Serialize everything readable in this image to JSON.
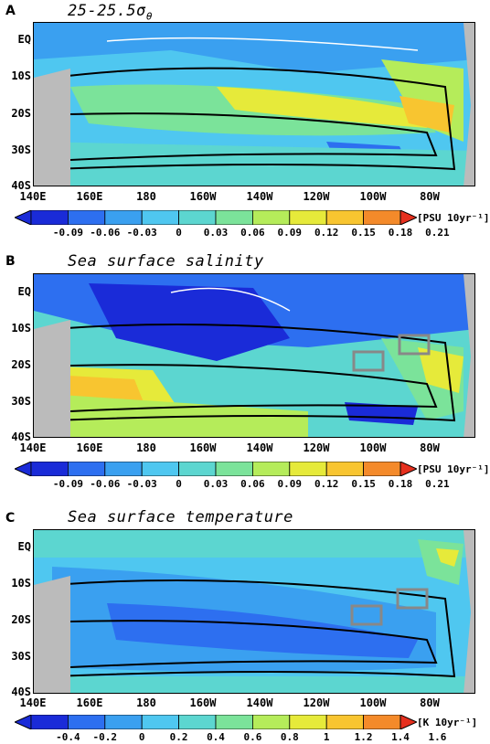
{
  "x_ticks": [
    "140E",
    "160E",
    "180",
    "160W",
    "140W",
    "120W",
    "100W",
    "80W"
  ],
  "y_ticks": [
    "EQ",
    "10S",
    "20S",
    "30S",
    "40S"
  ],
  "panels": [
    {
      "letter": "A",
      "title": "25-25.5σ",
      "title_sub": "θ",
      "colorbar_ticks": [
        "-0.09",
        "-0.06",
        "-0.03",
        "0",
        "0.03",
        "0.06",
        "0.09",
        "0.12",
        "0.15",
        "0.18",
        "0.21"
      ],
      "colorbar_unit": "[PSU 10yr⁻¹]",
      "colors": [
        "#1a2bd8",
        "#2d6ff0",
        "#3aa0f0",
        "#4fc7f0",
        "#5cd6d0",
        "#7be39a",
        "#b5ec5a",
        "#e6ea3a",
        "#f8c530",
        "#f48a2a",
        "#e6301e"
      ]
    },
    {
      "letter": "B",
      "title": "Sea surface salinity",
      "title_sub": "",
      "colorbar_ticks": [
        "-0.09",
        "-0.06",
        "-0.03",
        "0",
        "0.03",
        "0.06",
        "0.09",
        "0.12",
        "0.15",
        "0.18",
        "0.21"
      ],
      "colorbar_unit": "[PSU 10yr⁻¹]",
      "colors": [
        "#1a2bd8",
        "#2d6ff0",
        "#3aa0f0",
        "#4fc7f0",
        "#5cd6d0",
        "#7be39a",
        "#b5ec5a",
        "#e6ea3a",
        "#f8c530",
        "#f48a2a",
        "#e6301e"
      ]
    },
    {
      "letter": "C",
      "title": "Sea surface temperature",
      "title_sub": "",
      "colorbar_ticks": [
        "-0.4",
        "-0.2",
        "0",
        "0.2",
        "0.4",
        "0.6",
        "0.8",
        "1",
        "1.2",
        "1.4",
        "1.6"
      ],
      "colorbar_unit": "[K 10yr⁻¹]",
      "colors": [
        "#1a2bd8",
        "#2d6ff0",
        "#3aa0f0",
        "#4fc7f0",
        "#5cd6d0",
        "#7be39a",
        "#b5ec5a",
        "#e6ea3a",
        "#f8c530",
        "#f48a2a",
        "#e6301e"
      ]
    }
  ]
}
